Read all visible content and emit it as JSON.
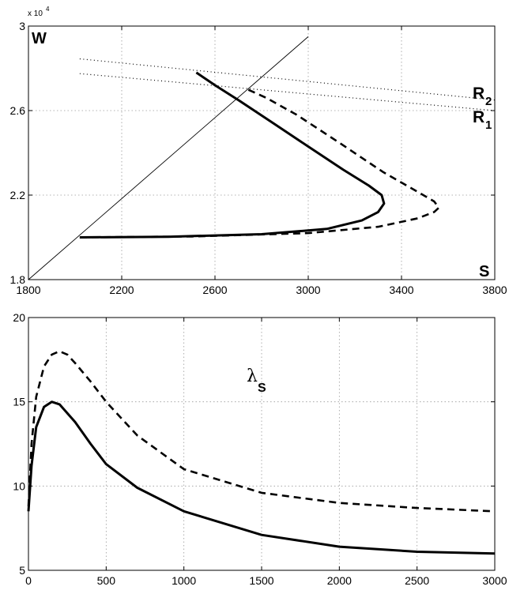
{
  "chart_data": [
    {
      "type": "line",
      "corner_labels": {
        "top_left": "W",
        "bottom_right": "S"
      },
      "y_exponent_label": {
        "base": "x 10",
        "exp": "4"
      },
      "xlim": [
        1800,
        3800
      ],
      "ylim": [
        1.8,
        3.0
      ],
      "x_ticks": [
        1800,
        2200,
        2600,
        3000,
        3400,
        3800
      ],
      "y_ticks": [
        1.8,
        2.2,
        2.6,
        3.0
      ],
      "x_tick_labels": [
        "1800",
        "2200",
        "2600",
        "3000",
        "3400",
        "3800"
      ],
      "y_tick_labels": [
        "1.8",
        "2.2",
        "2.6",
        "3"
      ],
      "grid": true,
      "annotations": [
        {
          "main": "R",
          "sub": "2"
        },
        {
          "main": "R",
          "sub": "1"
        }
      ],
      "series": [
        {
          "style": "thin-solid",
          "x": [
            1800,
            3000
          ],
          "y": [
            1.8,
            2.95
          ]
        },
        {
          "style": "dotted",
          "x": [
            2020,
            3800
          ],
          "y": [
            2.845,
            2.65
          ]
        },
        {
          "style": "dotted",
          "x": [
            2020,
            3800
          ],
          "y": [
            2.775,
            2.6
          ]
        },
        {
          "style": "thick-solid",
          "x": [
            2020,
            2400,
            2800,
            3080,
            3230,
            3300,
            3325,
            3315,
            3260,
            3150,
            3000,
            2850,
            2700,
            2600,
            2520
          ],
          "y": [
            2.0,
            2.003,
            2.015,
            2.04,
            2.08,
            2.12,
            2.16,
            2.2,
            2.245,
            2.32,
            2.43,
            2.54,
            2.65,
            2.72,
            2.78
          ]
        },
        {
          "style": "thick-dashed",
          "x": [
            2020,
            2500,
            3000,
            3300,
            3470,
            3540,
            3560,
            3540,
            3470,
            3320,
            3130,
            2950,
            2820,
            2740
          ],
          "y": [
            2.0,
            2.004,
            2.02,
            2.05,
            2.09,
            2.12,
            2.14,
            2.17,
            2.215,
            2.31,
            2.45,
            2.58,
            2.66,
            2.7
          ]
        }
      ]
    },
    {
      "type": "line",
      "label": {
        "main": "λ",
        "sub": "S"
      },
      "xlim": [
        0,
        3000
      ],
      "ylim": [
        5,
        20
      ],
      "x_ticks": [
        0,
        500,
        1000,
        1500,
        2000,
        2500,
        3000
      ],
      "y_ticks": [
        5,
        10,
        15,
        20
      ],
      "x_tick_labels": [
        "0",
        "500",
        "1000",
        "1500",
        "2000",
        "2500",
        "3000"
      ],
      "y_tick_labels": [
        "5",
        "10",
        "15",
        "20"
      ],
      "grid": true,
      "series": [
        {
          "style": "thick-solid",
          "x": [
            0,
            20,
            50,
            100,
            150,
            200,
            300,
            400,
            500,
            700,
            1000,
            1500,
            2000,
            2500,
            3000
          ],
          "y": [
            8.5,
            11.2,
            13.5,
            14.7,
            15.0,
            14.85,
            13.8,
            12.5,
            11.3,
            9.9,
            8.5,
            7.1,
            6.4,
            6.1,
            6.0
          ]
        },
        {
          "style": "thick-dashed",
          "x": [
            0,
            20,
            50,
            100,
            150,
            200,
            250,
            300,
            400,
            500,
            700,
            1000,
            1500,
            2000,
            2500,
            3000
          ],
          "y": [
            8.8,
            12.5,
            15.3,
            17.1,
            17.8,
            18.0,
            17.8,
            17.3,
            16.2,
            15.0,
            13.0,
            11.0,
            9.6,
            9.0,
            8.7,
            8.5
          ]
        }
      ]
    }
  ]
}
